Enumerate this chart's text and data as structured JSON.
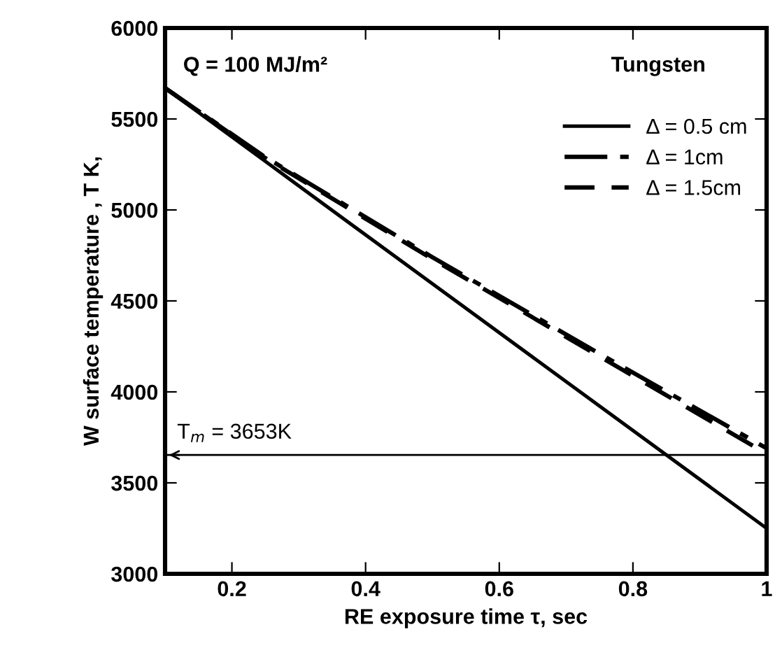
{
  "chart_data": {
    "type": "line",
    "xlabel": "RE exposure time τ, sec",
    "ylabel": "W surface temperature , T K,",
    "x": [
      0.1,
      0.25,
      0.5,
      0.75,
      1.0
    ],
    "series": [
      {
        "name": "Δ = 0.5 cm",
        "color": "#000000",
        "line_style": "solid",
        "values": [
          5670,
          5267,
          4594,
          3922,
          3250
        ]
      },
      {
        "name": "Δ = 1cm",
        "color": "#000000",
        "line_style": "dashdot",
        "values": [
          5670,
          5290,
          4740,
          4210,
          3690
        ]
      },
      {
        "name": "Δ = 1.5cm",
        "color": "#000000",
        "line_style": "dashed",
        "values": [
          5670,
          5285,
          4730,
          4195,
          3660
        ]
      }
    ],
    "xlim": [
      0.1,
      1.0
    ],
    "xticks": [
      0.2,
      0.4,
      0.6,
      0.8,
      {
        "value": 1.0,
        "label": "1"
      }
    ],
    "ylim": [
      3000,
      6000
    ],
    "yticks": [
      3000,
      3500,
      4000,
      4500,
      5000,
      5500,
      6000
    ],
    "ref_lines": [
      {
        "axis": "y",
        "value": 3653,
        "label": "T$_{m}$ = 3653K",
        "color": "#000000"
      }
    ],
    "annotations": [
      "Q = 100 MJ/m²",
      "Tungsten"
    ],
    "legend": "top right",
    "grid": false,
    "marker": "none"
  }
}
